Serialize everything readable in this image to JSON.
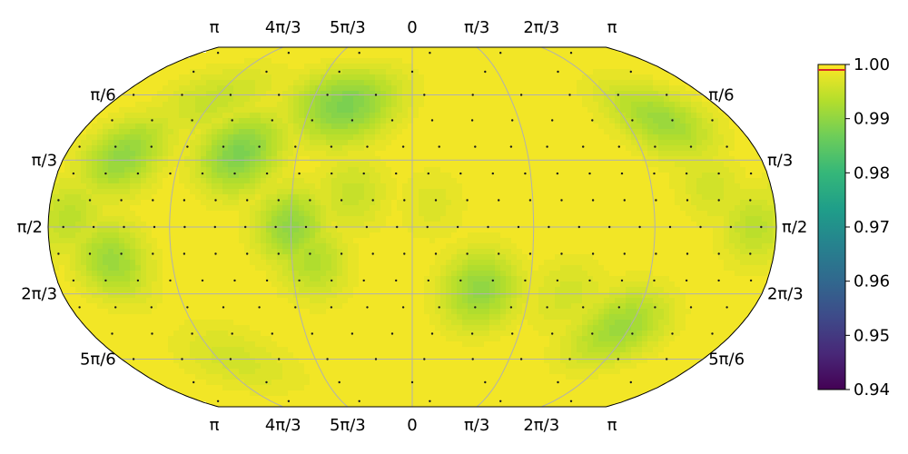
{
  "chart_data": {
    "type": "heatmap",
    "projection": "robinson",
    "colormap": "viridis",
    "grid": true,
    "title": "",
    "xlabel": "",
    "ylabel": "",
    "colorbar": {
      "min": 0.94,
      "max": 1.0,
      "ticks": [
        "0.94",
        "0.95",
        "0.96",
        "0.97",
        "0.98",
        "0.99",
        "1.00"
      ],
      "tick_values": [
        0.94,
        0.95,
        0.96,
        0.97,
        0.98,
        0.99,
        1.0
      ],
      "marker_value": 0.999,
      "marker_color": "#d62728"
    },
    "lon_ticks": [
      {
        "label": "π",
        "lon": -180
      },
      {
        "label": "4π/3",
        "lon": -120
      },
      {
        "label": "5π/3",
        "lon": -60
      },
      {
        "label": "0",
        "lon": 0
      },
      {
        "label": "π/3",
        "lon": 60
      },
      {
        "label": "2π/3",
        "lon": 120
      },
      {
        "label": "π",
        "lon": 180
      }
    ],
    "lat_ticks": [
      {
        "label": "π/6",
        "lat": 60
      },
      {
        "label": "π/3",
        "lat": 30
      },
      {
        "label": "π/2",
        "lat": 0
      },
      {
        "label": "2π/3",
        "lat": -30
      },
      {
        "label": "5π/6",
        "lat": -60
      }
    ],
    "background_value": 0.9995,
    "hotspots": [
      {
        "lon": -40,
        "lat": 55,
        "value": 0.988
      },
      {
        "lon": -90,
        "lat": 33,
        "value": 0.988
      },
      {
        "lon": -150,
        "lat": 32,
        "value": 0.99
      },
      {
        "lon": -60,
        "lat": 0,
        "value": 0.99
      },
      {
        "lon": -50,
        "lat": -15,
        "value": 0.993
      },
      {
        "lon": -150,
        "lat": -15,
        "value": 0.991
      },
      {
        "lon": -170,
        "lat": 5,
        "value": 0.994
      },
      {
        "lon": 35,
        "lat": -28,
        "value": 0.99
      },
      {
        "lon": 115,
        "lat": -45,
        "value": 0.991
      },
      {
        "lon": 140,
        "lat": 48,
        "value": 0.991
      },
      {
        "lon": 170,
        "lat": 0,
        "value": 0.994
      },
      {
        "lon": -30,
        "lat": 15,
        "value": 0.995
      },
      {
        "lon": -120,
        "lat": 58,
        "value": 0.995
      },
      {
        "lon": 150,
        "lat": 18,
        "value": 0.996
      },
      {
        "lon": 10,
        "lat": 10,
        "value": 0.997
      },
      {
        "lon": -110,
        "lat": -60,
        "value": 0.996
      },
      {
        "lon": 80,
        "lat": -30,
        "value": 0.996
      }
    ],
    "sample_lats": [
      84,
      72,
      60,
      48,
      36,
      24,
      12,
      0,
      -12,
      -24,
      -36,
      -48,
      -60,
      -72,
      -84
    ]
  }
}
